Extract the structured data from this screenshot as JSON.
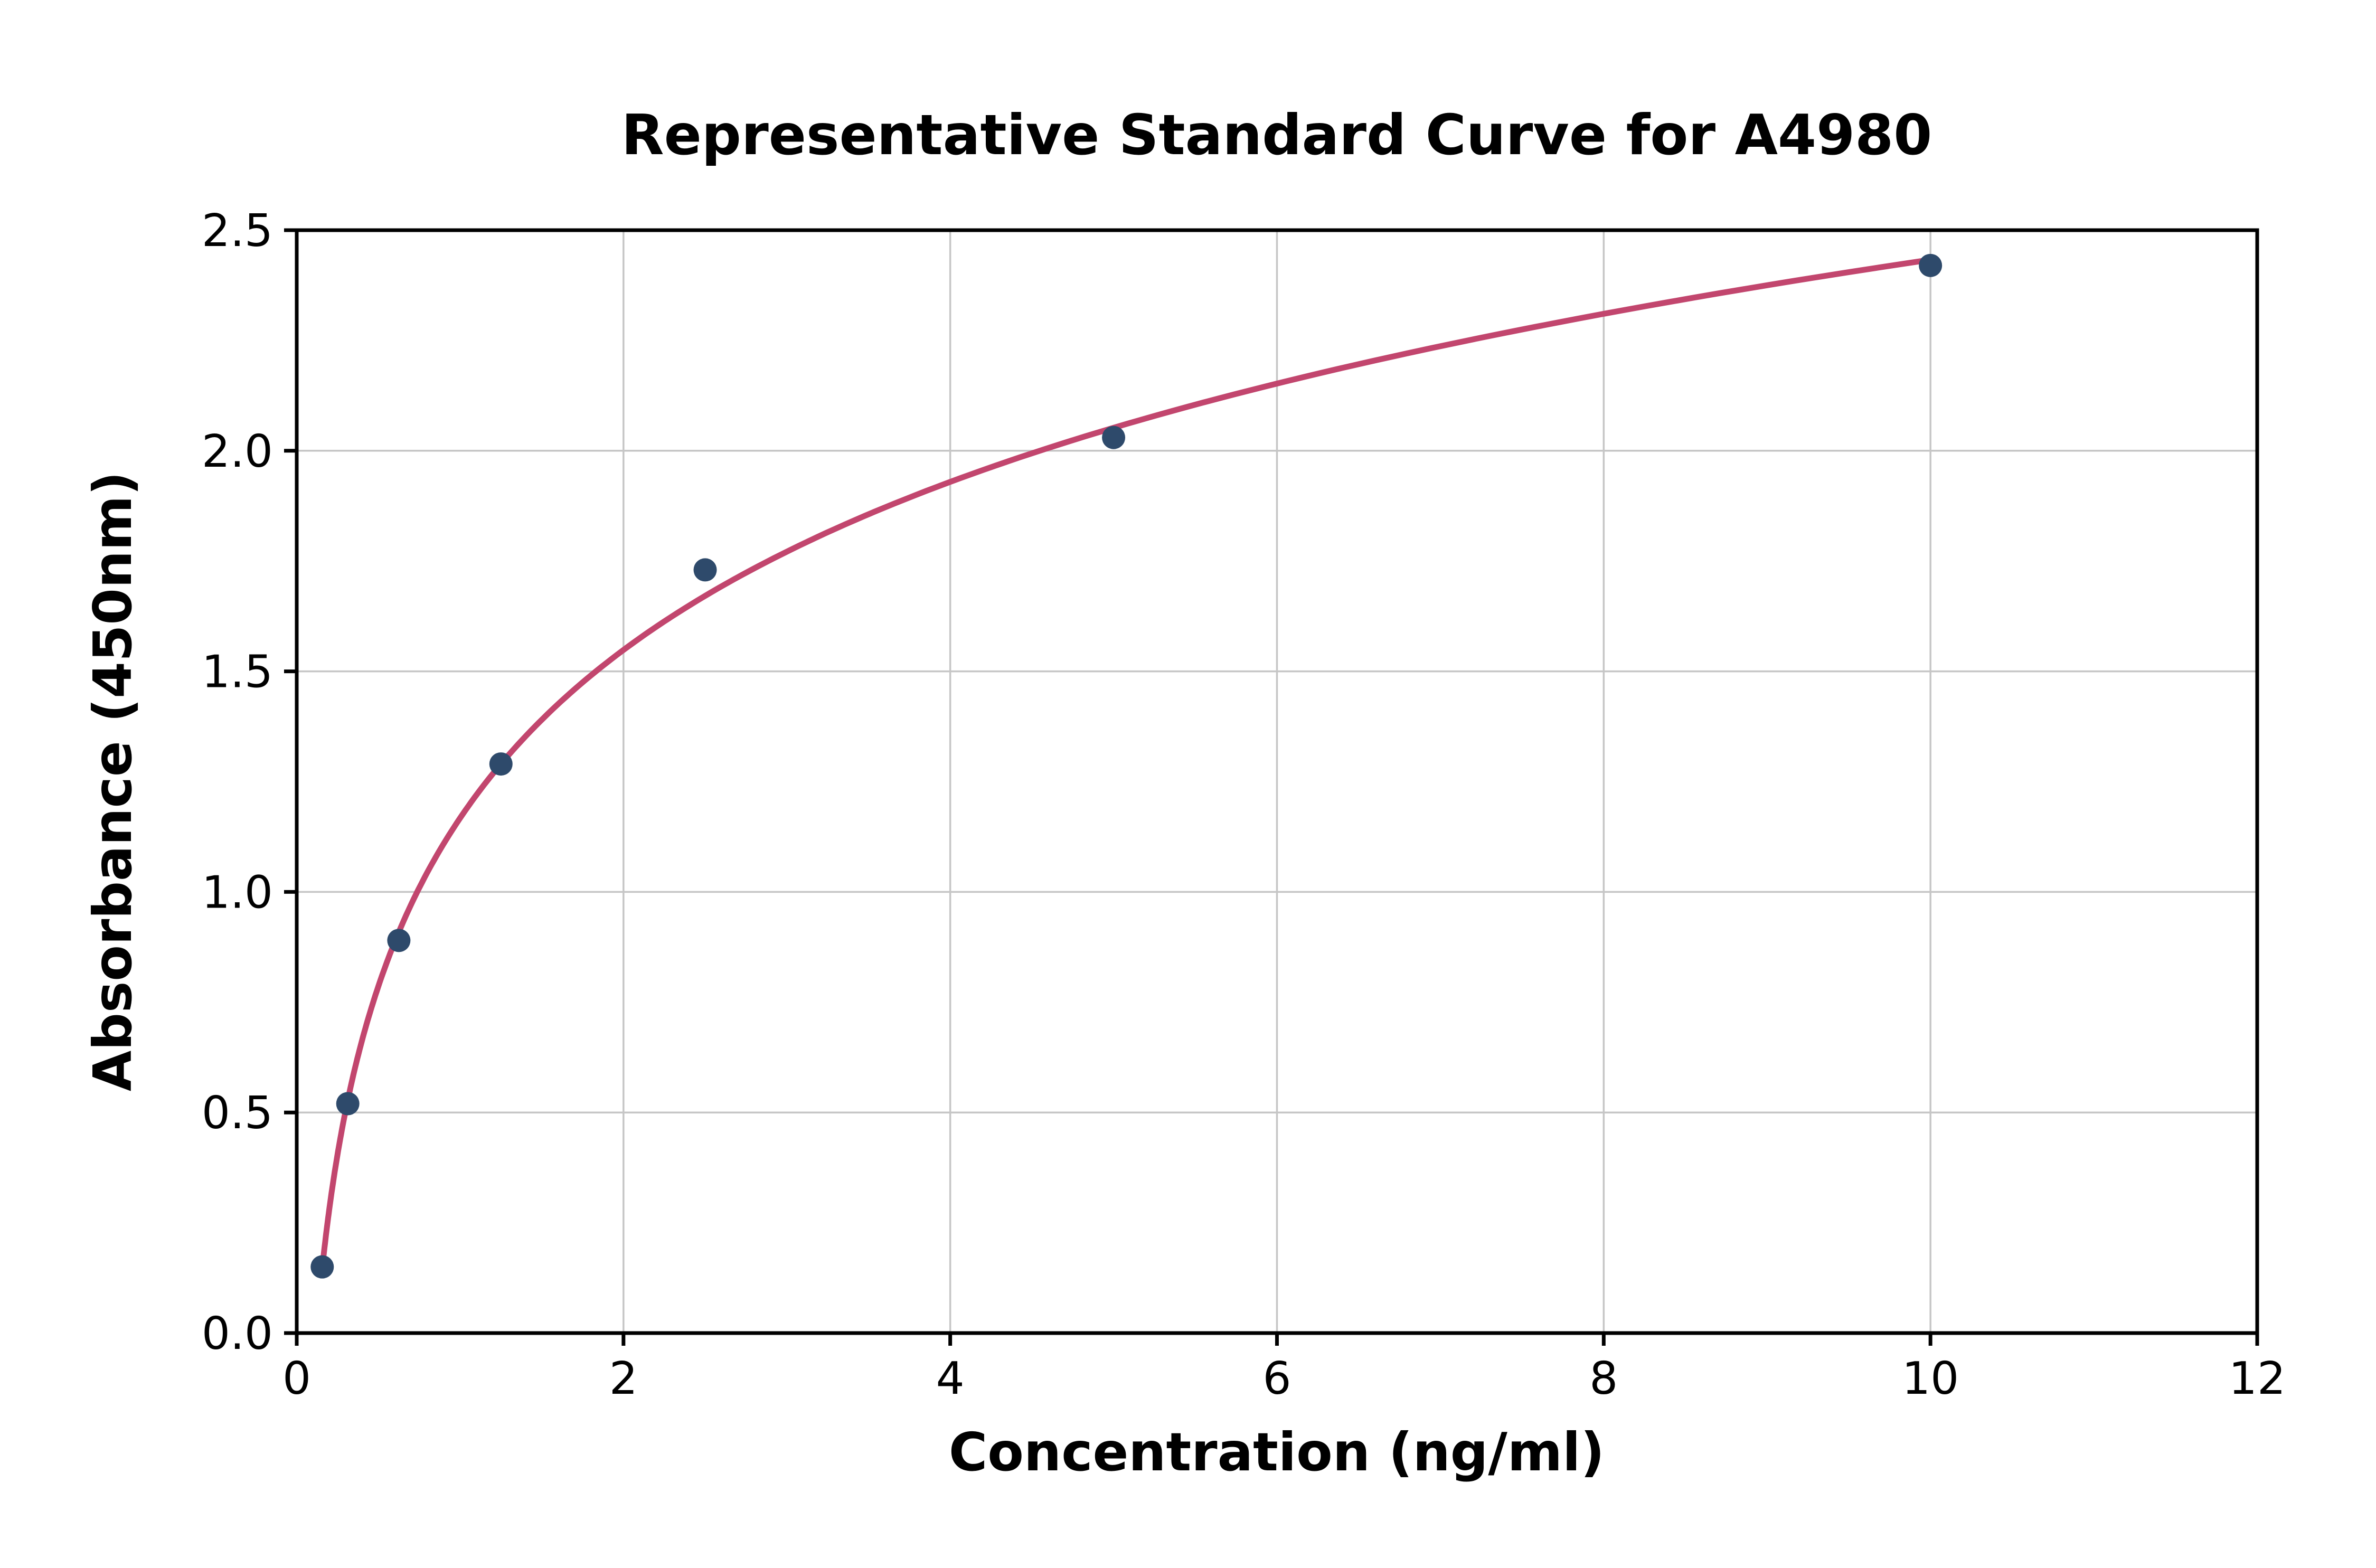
{
  "chart_data": {
    "type": "scatter",
    "title": "Representative Standard Curve for A4980",
    "xlabel": "Concentration (ng/ml)",
    "ylabel": "Absorbance (450nm)",
    "xlim": [
      0,
      12
    ],
    "ylim": [
      0,
      2.5
    ],
    "x_ticks": [
      0,
      2,
      4,
      6,
      8,
      10,
      12
    ],
    "x_tick_labels": [
      "0",
      "2",
      "4",
      "6",
      "8",
      "10",
      "12"
    ],
    "y_ticks": [
      0.0,
      0.5,
      1.0,
      1.5,
      2.0,
      2.5
    ],
    "y_tick_labels": [
      "0.0",
      "0.5",
      "1.0",
      "1.5",
      "2.0",
      "2.5"
    ],
    "grid": true,
    "legend": "none",
    "x": [
      0.156,
      0.3125,
      0.625,
      1.25,
      2.5,
      5,
      10
    ],
    "y": [
      0.15,
      0.52,
      0.89,
      1.29,
      1.73,
      2.03,
      2.42
    ],
    "curve_fit": "logarithmic",
    "colors": {
      "marker": "#2e4a6b",
      "curve": "#c2466e",
      "grid": "#c6c6c6",
      "axis": "#000000",
      "background": "#ffffff"
    }
  }
}
